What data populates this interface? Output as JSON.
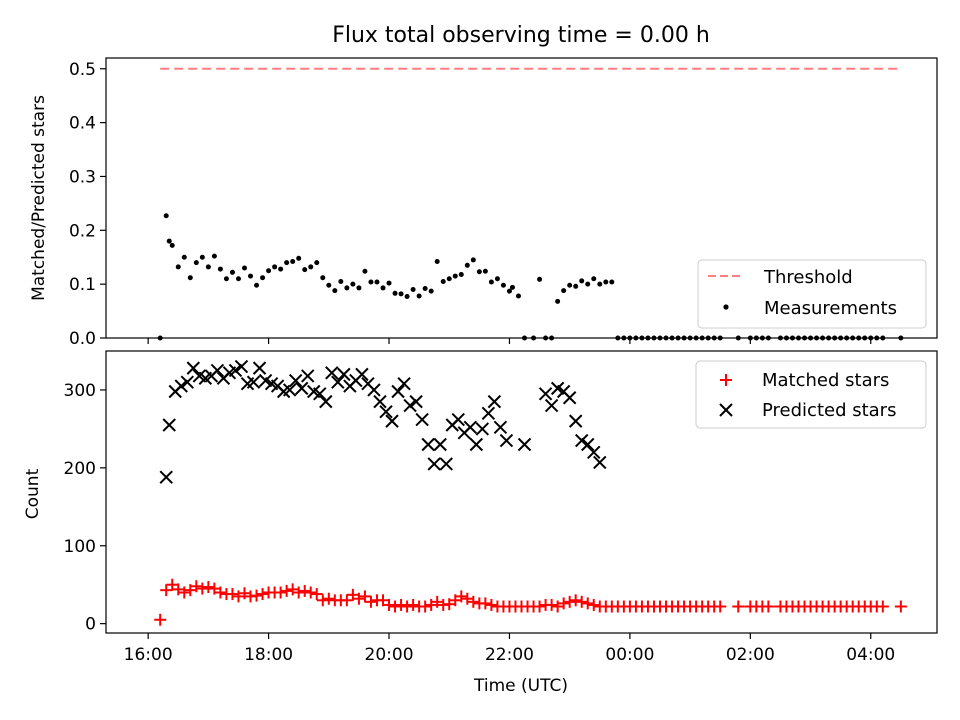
{
  "chart_data": [
    {
      "type": "scatter",
      "title": "Flux total observing time = 0.00 h",
      "xlabel": "",
      "ylabel": "Matched/Predicted stars",
      "xlim": [
        15.3,
        29.1
      ],
      "ylim": [
        0,
        0.52
      ],
      "yticks": [
        0,
        0.1,
        0.2,
        0.3,
        0.4,
        0.5
      ],
      "ytick_labels": [
        "0.0",
        "0.1",
        "0.2",
        "0.3",
        "0.4",
        "0.5"
      ],
      "xticks": [
        16,
        18,
        20,
        22,
        24,
        26,
        28
      ],
      "xtick_labels": [
        "",
        "",
        "",
        "",
        "",
        "",
        ""
      ],
      "legend_position": "lower-right",
      "threshold": {
        "name": "Threshold",
        "color": "#ff7f7f",
        "y": 0.5,
        "x": [
          16.2,
          28.5
        ]
      },
      "series": [
        {
          "name": "Measurements",
          "color": "#000000",
          "x": [
            16.2,
            16.3,
            16.35,
            16.4,
            16.5,
            16.6,
            16.7,
            16.8,
            16.9,
            17.0,
            17.1,
            17.2,
            17.3,
            17.4,
            17.5,
            17.6,
            17.7,
            17.8,
            17.9,
            18.0,
            18.1,
            18.2,
            18.3,
            18.4,
            18.5,
            18.6,
            18.7,
            18.8,
            18.9,
            19.0,
            19.1,
            19.2,
            19.3,
            19.4,
            19.5,
            19.6,
            19.7,
            19.8,
            19.9,
            20.0,
            20.1,
            20.2,
            20.3,
            20.4,
            20.5,
            20.6,
            20.7,
            20.8,
            20.9,
            21.0,
            21.1,
            21.2,
            21.3,
            21.4,
            21.5,
            21.6,
            21.7,
            21.8,
            21.9,
            22.0,
            22.05,
            22.15,
            22.25,
            22.4,
            22.5,
            22.6,
            22.7,
            22.8,
            22.9,
            23.0,
            23.1,
            23.2,
            23.3,
            23.4,
            23.5,
            23.6,
            23.7,
            23.8,
            23.9,
            24.0,
            24.1,
            24.2,
            24.3,
            24.4,
            24.5,
            24.6,
            24.7,
            24.8,
            24.9,
            25.0,
            25.1,
            25.2,
            25.3,
            25.4,
            25.5,
            25.8,
            26.0,
            26.1,
            26.2,
            26.3,
            26.5,
            26.6,
            26.7,
            26.8,
            26.9,
            27.0,
            27.1,
            27.2,
            27.3,
            27.4,
            27.5,
            27.6,
            27.7,
            27.8,
            27.9,
            28.0,
            28.1,
            28.2,
            28.5
          ],
          "y": [
            0.0,
            0.227,
            0.18,
            0.172,
            0.132,
            0.15,
            0.112,
            0.14,
            0.15,
            0.132,
            0.152,
            0.128,
            0.11,
            0.122,
            0.11,
            0.13,
            0.115,
            0.098,
            0.112,
            0.125,
            0.132,
            0.128,
            0.14,
            0.142,
            0.148,
            0.127,
            0.132,
            0.14,
            0.112,
            0.098,
            0.088,
            0.105,
            0.093,
            0.1,
            0.093,
            0.124,
            0.104,
            0.104,
            0.093,
            0.102,
            0.083,
            0.082,
            0.077,
            0.09,
            0.078,
            0.092,
            0.087,
            0.142,
            0.105,
            0.11,
            0.115,
            0.118,
            0.135,
            0.145,
            0.123,
            0.124,
            0.104,
            0.11,
            0.098,
            0.087,
            0.094,
            0.078,
            0.0,
            0.0,
            0.109,
            0.0,
            0.0,
            0.068,
            0.088,
            0.098,
            0.096,
            0.106,
            0.1,
            0.11,
            0.1,
            0.104,
            0.104,
            0.0,
            0.0,
            0.0,
            0.0,
            0.0,
            0.0,
            0.0,
            0.0,
            0.0,
            0.0,
            0.0,
            0.0,
            0.0,
            0.0,
            0.0,
            0.0,
            0.0,
            0.0,
            0.0,
            0.0,
            0.0,
            0.0,
            0.0,
            0.0,
            0.0,
            0.0,
            0.0,
            0.0,
            0.0,
            0.0,
            0.0,
            0.0,
            0.0,
            0.0,
            0.0,
            0.0,
            0.0,
            0.0,
            0.0,
            0.0,
            0.0,
            0.0
          ]
        }
      ]
    },
    {
      "type": "scatter",
      "title": "",
      "xlabel": "Time (UTC)",
      "ylabel": "Count",
      "xlim": [
        15.3,
        29.1
      ],
      "ylim": [
        -12,
        350
      ],
      "yticks": [
        0,
        100,
        200,
        300
      ],
      "ytick_labels": [
        "0",
        "100",
        "200",
        "300"
      ],
      "xticks": [
        16,
        18,
        20,
        22,
        24,
        26,
        28
      ],
      "xtick_labels": [
        "16:00",
        "18:00",
        "20:00",
        "22:00",
        "00:00",
        "02:00",
        "04:00"
      ],
      "legend_position": "upper-right",
      "series": [
        {
          "name": "Matched stars",
          "color": "#ff0000",
          "marker": "+",
          "x": [
            16.2,
            16.3,
            16.4,
            16.5,
            16.6,
            16.7,
            16.8,
            16.9,
            17.0,
            17.1,
            17.2,
            17.3,
            17.4,
            17.5,
            17.6,
            17.7,
            17.8,
            17.9,
            18.0,
            18.1,
            18.2,
            18.3,
            18.4,
            18.5,
            18.6,
            18.7,
            18.8,
            18.9,
            19.0,
            19.1,
            19.2,
            19.3,
            19.4,
            19.5,
            19.6,
            19.7,
            19.8,
            19.9,
            20.0,
            20.1,
            20.2,
            20.3,
            20.4,
            20.5,
            20.6,
            20.7,
            20.8,
            20.9,
            21.0,
            21.1,
            21.2,
            21.3,
            21.4,
            21.5,
            21.6,
            21.7,
            21.8,
            21.9,
            22.0,
            22.1,
            22.2,
            22.3,
            22.4,
            22.5,
            22.6,
            22.7,
            22.8,
            22.9,
            23.0,
            23.1,
            23.2,
            23.3,
            23.4,
            23.5,
            23.6,
            23.7,
            23.8,
            23.9,
            24.0,
            24.1,
            24.2,
            24.3,
            24.4,
            24.5,
            24.6,
            24.7,
            24.8,
            24.9,
            25.0,
            25.1,
            25.2,
            25.3,
            25.4,
            25.5,
            25.8,
            26.0,
            26.1,
            26.2,
            26.3,
            26.5,
            26.6,
            26.7,
            26.8,
            26.9,
            27.0,
            27.1,
            27.2,
            27.3,
            27.4,
            27.5,
            27.6,
            27.7,
            27.8,
            27.9,
            28.0,
            28.1,
            28.2,
            28.5
          ],
          "y": [
            5,
            43,
            50,
            44,
            40,
            43,
            48,
            45,
            47,
            45,
            40,
            38,
            38,
            35,
            39,
            35,
            36,
            38,
            40,
            40,
            40,
            42,
            44,
            40,
            42,
            40,
            38,
            30,
            32,
            30,
            30,
            30,
            37,
            32,
            35,
            28,
            30,
            30,
            24,
            22,
            24,
            22,
            24,
            22,
            22,
            24,
            28,
            24,
            25,
            30,
            35,
            32,
            28,
            26,
            26,
            24,
            22,
            22,
            22,
            22,
            22,
            22,
            22,
            22,
            24,
            24,
            22,
            26,
            28,
            30,
            28,
            26,
            24,
            22,
            22,
            22,
            22,
            22,
            22,
            22,
            22,
            22,
            22,
            22,
            22,
            22,
            22,
            22,
            22,
            22,
            22,
            22,
            22,
            22,
            22,
            22,
            22,
            22,
            22,
            22,
            22,
            22,
            22,
            22,
            22,
            22,
            22,
            22,
            22,
            22,
            22,
            22,
            22,
            22,
            22,
            22,
            22,
            22
          ]
        },
        {
          "name": "Predicted stars",
          "color": "#000000",
          "marker": "x",
          "x": [
            16.3,
            16.35,
            16.45,
            16.55,
            16.65,
            16.75,
            16.85,
            16.95,
            17.05,
            17.15,
            17.25,
            17.35,
            17.45,
            17.55,
            17.65,
            17.75,
            17.85,
            17.95,
            18.05,
            18.15,
            18.25,
            18.35,
            18.45,
            18.55,
            18.65,
            18.75,
            18.85,
            18.95,
            19.05,
            19.15,
            19.25,
            19.35,
            19.45,
            19.55,
            19.65,
            19.75,
            19.85,
            19.95,
            20.05,
            20.15,
            20.25,
            20.35,
            20.45,
            20.55,
            20.65,
            20.75,
            20.85,
            20.95,
            21.05,
            21.15,
            21.25,
            21.35,
            21.45,
            21.55,
            21.65,
            21.75,
            21.85,
            21.95,
            22.25,
            22.6,
            22.7,
            22.8,
            22.9,
            23.0,
            23.1,
            23.2,
            23.3,
            23.4,
            23.5
          ],
          "y": [
            188,
            255,
            298,
            305,
            310,
            328,
            318,
            315,
            318,
            325,
            315,
            322,
            325,
            330,
            308,
            310,
            328,
            312,
            308,
            305,
            298,
            300,
            312,
            302,
            318,
            298,
            295,
            285,
            322,
            310,
            320,
            305,
            312,
            320,
            308,
            300,
            285,
            272,
            260,
            298,
            308,
            280,
            285,
            262,
            230,
            205,
            230,
            205,
            255,
            262,
            245,
            252,
            230,
            250,
            270,
            285,
            252,
            235,
            230,
            295,
            280,
            302,
            298,
            290,
            260,
            235,
            230,
            220,
            207
          ]
        }
      ]
    }
  ]
}
